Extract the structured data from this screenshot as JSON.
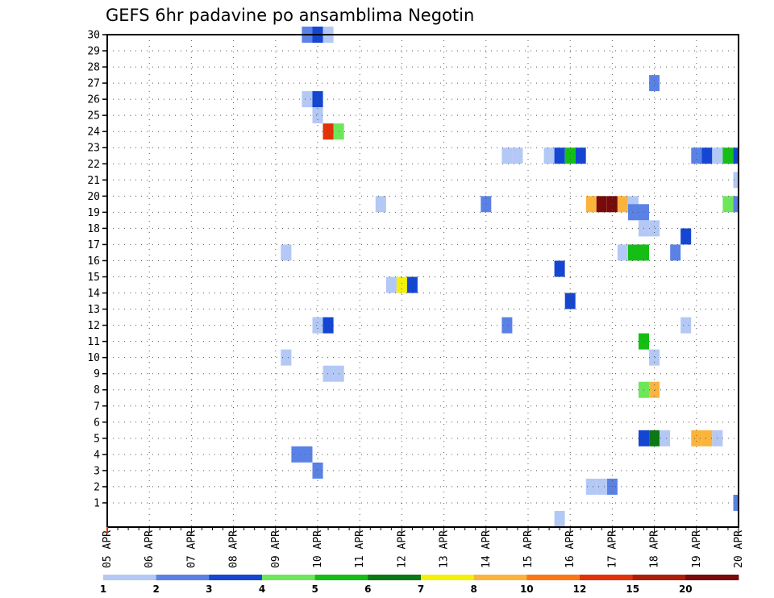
{
  "title": "GEFS 6hr padavine po ansamblima Negotin",
  "chart_data": {
    "type": "heatmap",
    "title": "GEFS 6hr padavine po ansamblima Negotin",
    "xlabel": "",
    "ylabel": "",
    "x_unit": "6-hour steps from 05 APR 00Z",
    "x_range": [
      0,
      60
    ],
    "y_range": [
      0,
      30
    ],
    "grid": true,
    "y_ticks": [
      1,
      2,
      3,
      4,
      5,
      6,
      7,
      8,
      9,
      10,
      11,
      12,
      13,
      14,
      15,
      16,
      17,
      18,
      19,
      20,
      21,
      22,
      23,
      24,
      25,
      26,
      27,
      28,
      29,
      30
    ],
    "y_tick_labels": [
      "1",
      "2",
      "3",
      "4",
      "5",
      "6",
      "7",
      "8",
      "9",
      "10",
      "11",
      "12",
      "13",
      "14",
      "15",
      "16",
      "17",
      "18",
      "19",
      "20",
      "21",
      "22",
      "23",
      "24",
      "25",
      "26",
      "27",
      "28",
      "29",
      "30"
    ],
    "x_tick_labels": [
      "05 APR",
      "06 APR",
      "07 APR",
      "08 APR",
      "09 APR",
      "10 APR",
      "11 APR",
      "12 APR",
      "13 APR",
      "14 APR",
      "15 APR",
      "16 APR",
      "17 APR",
      "18 APR",
      "19 APR",
      "20 APR"
    ],
    "legend": {
      "labels": [
        "1",
        "2",
        "3",
        "4",
        "5",
        "6",
        "7",
        "8",
        "10",
        "12",
        "15",
        "20"
      ],
      "colors": [
        "#b4c8f5",
        "#5a82e6",
        "#1446d2",
        "#6ee65a",
        "#14be14",
        "#0a7814",
        "#f5f00a",
        "#fab43c",
        "#fa7814",
        "#e1320a",
        "#aa1e0a",
        "#780a0a"
      ]
    },
    "series": [
      {
        "x": 19,
        "y": 30,
        "level": 1
      },
      {
        "x": 20,
        "y": 30,
        "level": 2
      },
      {
        "x": 21,
        "y": 30,
        "level": 0
      },
      {
        "x": 52,
        "y": 27,
        "level": 1
      },
      {
        "x": 19,
        "y": 26,
        "level": 0
      },
      {
        "x": 20,
        "y": 26,
        "level": 2
      },
      {
        "x": 20,
        "y": 25,
        "level": 0
      },
      {
        "x": 21,
        "y": 24,
        "level": 9
      },
      {
        "x": 22,
        "y": 24,
        "level": 3
      },
      {
        "x": 38,
        "y": 22.5,
        "level": 0
      },
      {
        "x": 39,
        "y": 22.5,
        "level": 0
      },
      {
        "x": 42,
        "y": 22.5,
        "level": 0
      },
      {
        "x": 43,
        "y": 22.5,
        "level": 2
      },
      {
        "x": 44,
        "y": 22.5,
        "level": 4
      },
      {
        "x": 45,
        "y": 22.5,
        "level": 2
      },
      {
        "x": 56,
        "y": 22.5,
        "level": 1
      },
      {
        "x": 57,
        "y": 22.5,
        "level": 2
      },
      {
        "x": 58,
        "y": 22.5,
        "level": 0
      },
      {
        "x": 59,
        "y": 22.5,
        "level": 4
      },
      {
        "x": 60,
        "y": 22.5,
        "level": 2
      },
      {
        "x": 60,
        "y": 21,
        "level": 0
      },
      {
        "x": 26,
        "y": 19.5,
        "level": 0
      },
      {
        "x": 36,
        "y": 19.5,
        "level": 1
      },
      {
        "x": 46,
        "y": 19.5,
        "level": 7
      },
      {
        "x": 47,
        "y": 19.5,
        "level": 11
      },
      {
        "x": 48,
        "y": 19.5,
        "level": 11
      },
      {
        "x": 49,
        "y": 19.5,
        "level": 7
      },
      {
        "x": 50,
        "y": 19.5,
        "level": 0
      },
      {
        "x": 59,
        "y": 19.5,
        "level": 3
      },
      {
        "x": 60,
        "y": 19.5,
        "level": 1
      },
      {
        "x": 50,
        "y": 19,
        "level": 1
      },
      {
        "x": 51,
        "y": 19,
        "level": 1
      },
      {
        "x": 51,
        "y": 18,
        "level": 0
      },
      {
        "x": 52,
        "y": 18,
        "level": 0
      },
      {
        "x": 55,
        "y": 17.5,
        "level": 2
      },
      {
        "x": 17,
        "y": 16.5,
        "level": 0
      },
      {
        "x": 49,
        "y": 16.5,
        "level": 0
      },
      {
        "x": 50,
        "y": 16.5,
        "level": 4
      },
      {
        "x": 51,
        "y": 16.5,
        "level": 4
      },
      {
        "x": 54,
        "y": 16.5,
        "level": 1
      },
      {
        "x": 43,
        "y": 15.5,
        "level": 2
      },
      {
        "x": 27,
        "y": 14.5,
        "level": 0
      },
      {
        "x": 28,
        "y": 14.5,
        "level": 6
      },
      {
        "x": 29,
        "y": 14.5,
        "level": 2
      },
      {
        "x": 44,
        "y": 13.5,
        "level": 2
      },
      {
        "x": 20,
        "y": 12,
        "level": 0
      },
      {
        "x": 21,
        "y": 12,
        "level": 2
      },
      {
        "x": 38,
        "y": 12,
        "level": 1
      },
      {
        "x": 55,
        "y": 12,
        "level": 0
      },
      {
        "x": 51,
        "y": 11,
        "level": 4
      },
      {
        "x": 17,
        "y": 10,
        "level": 0
      },
      {
        "x": 52,
        "y": 10,
        "level": 0
      },
      {
        "x": 21,
        "y": 9,
        "level": 0
      },
      {
        "x": 22,
        "y": 9,
        "level": 0
      },
      {
        "x": 51,
        "y": 8,
        "level": 3
      },
      {
        "x": 52,
        "y": 8,
        "level": 7
      },
      {
        "x": 51,
        "y": 5,
        "level": 2
      },
      {
        "x": 52,
        "y": 5,
        "level": 5
      },
      {
        "x": 53,
        "y": 5,
        "level": 0
      },
      {
        "x": 56,
        "y": 5,
        "level": 7
      },
      {
        "x": 57,
        "y": 5,
        "level": 7
      },
      {
        "x": 58,
        "y": 5,
        "level": 0
      },
      {
        "x": 18,
        "y": 4,
        "level": 1
      },
      {
        "x": 19,
        "y": 4,
        "level": 1
      },
      {
        "x": 20,
        "y": 3,
        "level": 1
      },
      {
        "x": 46,
        "y": 2,
        "level": 0
      },
      {
        "x": 47,
        "y": 2,
        "level": 0
      },
      {
        "x": 48,
        "y": 2,
        "level": 1
      },
      {
        "x": 60,
        "y": 1,
        "level": 1
      },
      {
        "x": 43,
        "y": 0,
        "level": 0
      }
    ]
  }
}
